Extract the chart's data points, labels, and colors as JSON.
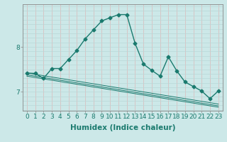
{
  "xlabel": "Humidex (Indice chaleur)",
  "background_color": "#cce8e8",
  "grid_color_h": "#b8d8d8",
  "grid_color_v": "#ddb8b8",
  "line_color": "#1a7a6e",
  "x": [
    0,
    1,
    2,
    3,
    4,
    5,
    6,
    7,
    8,
    9,
    10,
    11,
    12,
    13,
    14,
    15,
    16,
    17,
    18,
    19,
    20,
    21,
    22,
    23
  ],
  "y_main": [
    7.42,
    7.41,
    7.3,
    7.52,
    7.52,
    7.72,
    7.92,
    8.18,
    8.38,
    8.58,
    8.65,
    8.72,
    8.72,
    8.08,
    7.62,
    7.48,
    7.35,
    7.78,
    7.47,
    7.22,
    7.12,
    7.02,
    6.85,
    7.02
  ],
  "y_trend1": [
    7.42,
    7.39,
    7.36,
    7.33,
    7.3,
    7.27,
    7.24,
    7.21,
    7.18,
    7.15,
    7.12,
    7.09,
    7.06,
    7.03,
    7.0,
    6.97,
    6.94,
    6.91,
    6.88,
    6.85,
    6.82,
    6.79,
    6.76,
    6.73
  ],
  "y_trend2": [
    7.38,
    7.35,
    7.32,
    7.29,
    7.26,
    7.23,
    7.2,
    7.17,
    7.14,
    7.11,
    7.08,
    7.05,
    7.02,
    6.99,
    6.96,
    6.93,
    6.9,
    6.87,
    6.84,
    6.81,
    6.78,
    6.75,
    6.72,
    6.69
  ],
  "y_trend3": [
    7.35,
    7.32,
    7.29,
    7.26,
    7.23,
    7.2,
    7.17,
    7.14,
    7.11,
    7.08,
    7.05,
    7.02,
    6.99,
    6.96,
    6.93,
    6.9,
    6.87,
    6.84,
    6.81,
    6.78,
    6.75,
    6.72,
    6.69,
    6.66
  ],
  "ylim": [
    6.58,
    8.95
  ],
  "yticks": [
    7.0,
    8.0
  ],
  "xtick_labels": [
    "0",
    "1",
    "2",
    "3",
    "4",
    "5",
    "6",
    "7",
    "8",
    "9",
    "10",
    "11",
    "12",
    "13",
    "14",
    "15",
    "16",
    "17",
    "18",
    "19",
    "20",
    "21",
    "22",
    "23"
  ],
  "marker": "D",
  "markersize": 2.5,
  "linewidth": 1.0,
  "tick_fontsize": 6.5,
  "label_fontsize": 7.5
}
